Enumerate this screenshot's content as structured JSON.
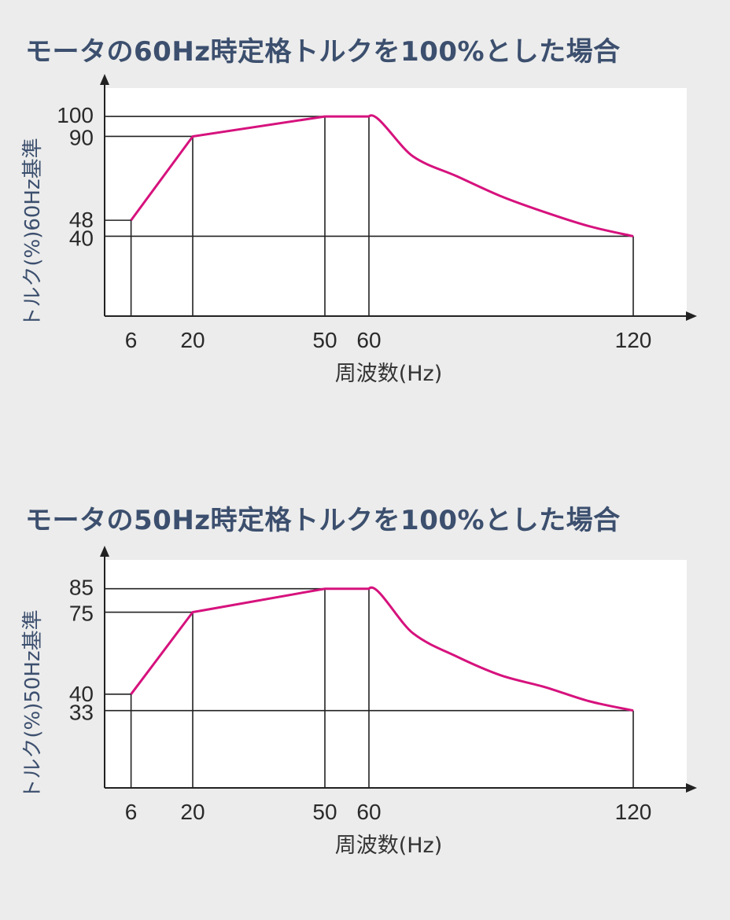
{
  "colors": {
    "background": "#ececec",
    "plot_area": "#ffffff",
    "curve": "#d6127d",
    "title": "#3c4f6e",
    "axis": "#222222",
    "guide_lines": "#222222"
  },
  "chart_data": [
    {
      "type": "line",
      "title": "モータの60Hz時定格トルクを100%とした場合",
      "xlabel": "周波数(Hz)",
      "ylabel": "トルク(%)60Hz基準",
      "x_ticks": [
        "6",
        "20",
        "50",
        "60",
        "120"
      ],
      "y_ticks": [
        "40",
        "48",
        "90",
        "100"
      ],
      "xlim": [
        0,
        132
      ],
      "ylim": [
        0,
        115
      ],
      "grid": false,
      "legend": "none",
      "series": [
        {
          "x": [
            6,
            20,
            50,
            60,
            70,
            80,
            90,
            100,
            110,
            120
          ],
          "y": [
            48,
            90,
            100,
            100,
            80,
            70,
            60,
            52,
            45,
            40
          ]
        }
      ]
    },
    {
      "type": "line",
      "title": "モータの50Hz時定格トルクを100%とした場合",
      "xlabel": "周波数(Hz)",
      "ylabel": "トルク(%)50Hz基準",
      "x_ticks": [
        "6",
        "20",
        "50",
        "60",
        "120"
      ],
      "y_ticks": [
        "33",
        "40",
        "75",
        "85"
      ],
      "xlim": [
        0,
        132
      ],
      "ylim": [
        0,
        98
      ],
      "grid": false,
      "legend": "none",
      "series": [
        {
          "x": [
            6,
            20,
            50,
            60,
            70,
            80,
            90,
            100,
            110,
            120
          ],
          "y": [
            40,
            75,
            85,
            85,
            66,
            56,
            48,
            43,
            37,
            33
          ]
        }
      ]
    }
  ]
}
